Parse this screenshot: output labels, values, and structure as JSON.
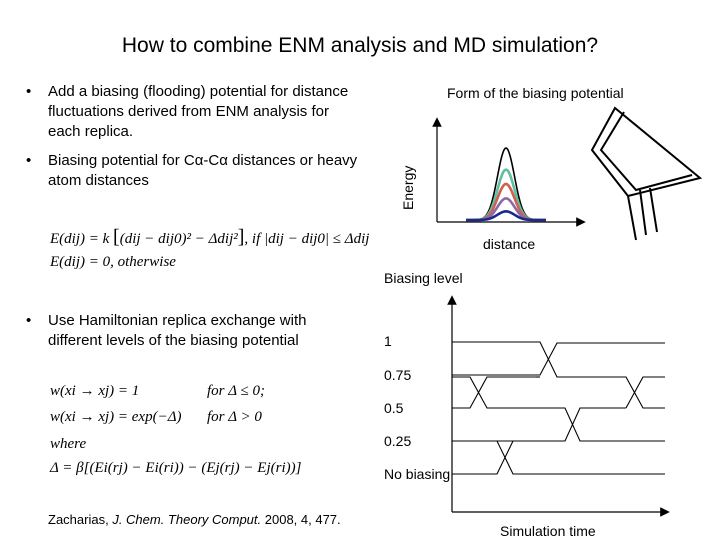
{
  "slide": {
    "title": "How to combine ENM analysis and MD simulation?",
    "bullets": [
      "Add a biasing (flooding) potential for distance fluctuations derived from ENM analysis for each replica.",
      "Biasing potential for Cα-Cα distances or heavy atom distances",
      "Use Hamiltonian replica exchange with different levels of the biasing potential"
    ],
    "bullet_symbol": "•",
    "reference": {
      "authors": "Zacharias, ",
      "journal": "J. Chem. Theory Comput.",
      "details": " 2008, 4, 477."
    }
  },
  "potential_plot": {
    "title": "Form of the biasing potential",
    "ylabel": "Energy",
    "xlabel": "distance",
    "curve_colors": [
      "#000000",
      "#5fbfa0",
      "#d06050",
      "#8a6aa8",
      "#1a2a8a"
    ],
    "curve_heights": [
      1.0,
      0.7,
      0.5,
      0.3,
      0.12
    ]
  },
  "equations": {
    "eq1_lhs": "E(dij) = k",
    "eq1_mid": "(dij − dij0)² − Δdij²",
    "eq1_cond": ",  if  |dij − dij0| ≤ Δdij",
    "eq2": "E(dij) = 0,  otherwise",
    "w1_lhs": "w(xi → xj) = 1",
    "w1_cond": "for Δ ≤ 0;",
    "w2_lhs": "w(xi → xj) = exp(−Δ)",
    "w2_cond": "for Δ > 0",
    "where": "where",
    "delta": "Δ = β[(Ei(rj) − Ei(ri)) − (Ej(rj) − Ej(ri))]"
  },
  "exchange_plot": {
    "title": "Biasing level",
    "xlabel": "Simulation time",
    "levels": [
      "1",
      "0.75",
      "0.5",
      "0.25",
      "No biasing"
    ]
  }
}
